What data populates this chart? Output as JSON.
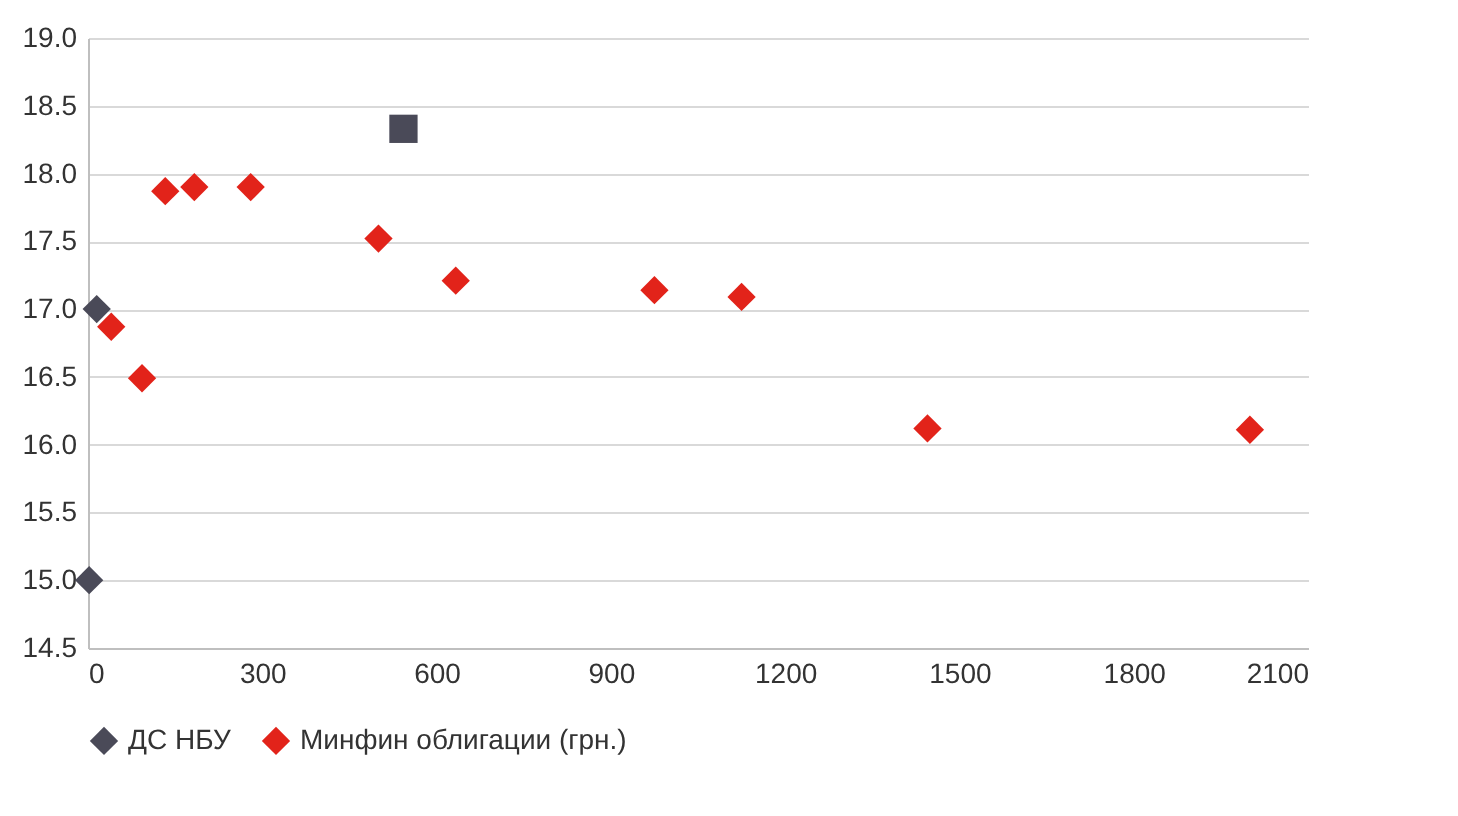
{
  "chart_data": {
    "type": "scatter",
    "xlim": [
      0,
      2100
    ],
    "xticks": [
      0,
      300,
      600,
      900,
      1200,
      1500,
      1800,
      2100
    ],
    "ylim": [
      14.5,
      19.0
    ],
    "yticks": [
      {
        "value": 14.5,
        "label": "14.5"
      },
      {
        "value": 15.0,
        "label": "15.0"
      },
      {
        "value": 15.5,
        "label": "15.5"
      },
      {
        "value": 16.0,
        "label": "16.0"
      },
      {
        "value": 16.5,
        "label": "16.5"
      },
      {
        "value": 17.0,
        "label": "17.0"
      },
      {
        "value": 17.5,
        "label": "17.5"
      },
      {
        "value": 18.0,
        "label": "18.0"
      },
      {
        "value": 18.5,
        "label": "18.5"
      },
      {
        "value": 19.0,
        "label": "19.0"
      }
    ],
    "grid": "y",
    "legend": "bottom",
    "series": [
      {
        "name": "ДС НБУ",
        "color": "#4a4a58",
        "marker": "diamond",
        "x": [
          2,
          15
        ],
        "values": [
          15.0,
          17.0
        ]
      },
      {
        "name": "Минфин облигации (грн.)",
        "color": "#e2231a",
        "marker": "diamond",
        "x": [
          40,
          93,
          133,
          183,
          280,
          500,
          633,
          975,
          1125,
          1445,
          2000
        ],
        "values": [
          16.87,
          16.49,
          17.87,
          17.9,
          17.9,
          17.52,
          17.21,
          17.14,
          17.09,
          16.12,
          16.11
        ]
      },
      {
        "color": "#4a4a58",
        "marker": "square",
        "x": [
          543
        ],
        "values": [
          18.33
        ]
      }
    ]
  }
}
